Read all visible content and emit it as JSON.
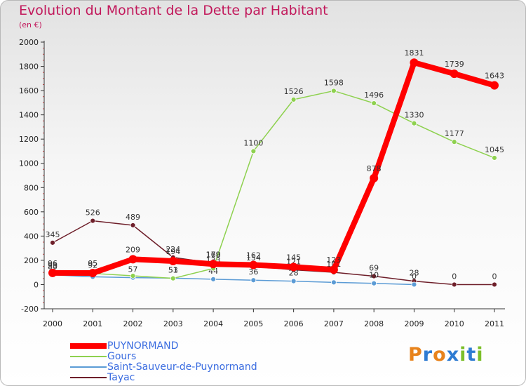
{
  "title": "Evolution du Montant de la Dette par Habitant",
  "subtitle": "(en €)",
  "logo": {
    "text": "Proxiti",
    "letters": [
      {
        "char": "P",
        "color": "#e8831c"
      },
      {
        "char": "r",
        "color": "#2e7bd2"
      },
      {
        "char": "o",
        "color": "#e8831c"
      },
      {
        "char": "x",
        "color": "#2e7bd2"
      },
      {
        "char": "i",
        "color": "#7cbf2a"
      },
      {
        "char": "t",
        "color": "#2e7bd2"
      },
      {
        "char": "i",
        "color": "#7cbf2a"
      }
    ]
  },
  "chart_data": {
    "type": "line",
    "title": "Evolution du Montant de la Dette par Habitant",
    "subtitle": "(en €)",
    "x": [
      "2000",
      "2001",
      "2002",
      "2003",
      "2004",
      "2005",
      "2006",
      "2007",
      "2008",
      "2009",
      "2010",
      "2011"
    ],
    "ylim": [
      -200,
      2000
    ],
    "yticks": [
      "-200",
      "0",
      "200",
      "400",
      "600",
      "800",
      "1000",
      "1200",
      "1400",
      "1600",
      "1800",
      "2000"
    ],
    "grid": false,
    "legend": "bottom-left",
    "series": [
      {
        "name": "Tayac",
        "color": "#6e1f2a",
        "values": [
          345,
          526,
          489,
          224,
          178,
          154,
          121,
          101,
          69,
          28,
          0,
          0
        ],
        "labels": [
          "345",
          "526",
          "489",
          "224",
          "178",
          "154",
          "121",
          "101",
          "69",
          "28",
          "0",
          "0"
        ]
      },
      {
        "name": "Saint-Sauveur-de-Puynormand",
        "color": "#5b9bd5",
        "values": [
          80,
          64,
          57,
          53,
          44,
          36,
          28,
          18,
          10,
          0,
          null,
          null
        ],
        "labels": [
          "80",
          "",
          "57",
          "53",
          "44",
          "36",
          "28",
          "",
          "10",
          "0",
          "",
          ""
        ]
      },
      {
        "name": "Gours",
        "color": "#8ed14f",
        "values": [
          91,
          92,
          72,
          51,
          133,
          1100,
          1526,
          1598,
          1496,
          1330,
          1177,
          1045
        ],
        "labels": [
          "91",
          "92",
          "",
          "51",
          "133",
          "1100",
          "1526",
          "1598",
          "1496",
          "1330",
          "1177",
          "1045"
        ]
      },
      {
        "name": "PUYNORMAND",
        "color": "#ff0000",
        "values": [
          96,
          95,
          209,
          194,
          169,
          162,
          145,
          123,
          878,
          1831,
          1739,
          1643
        ],
        "labels": [
          "96",
          "95",
          "209",
          "194",
          "169",
          "162",
          "145",
          "123",
          "878",
          "1831",
          "1739",
          "1643"
        ]
      }
    ]
  }
}
